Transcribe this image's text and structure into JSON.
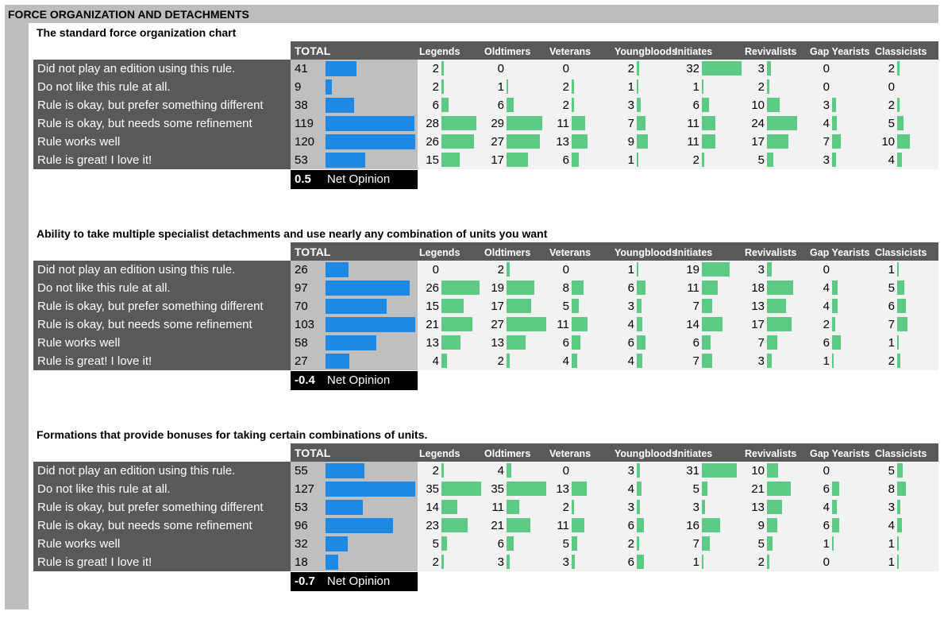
{
  "page_title": "FORCE ORGANIZATION AND DETACHMENTS",
  "total_header": "TOTAL",
  "group_headers": [
    "Legends",
    "Oldtimers",
    "Veterans",
    "Youngbloods",
    "Initiates",
    "Revivalists",
    "Gap Yearists",
    "Classicists"
  ],
  "row_labels": [
    "Did not play an edition using this rule.",
    "Do not like this rule at all.",
    "Rule is okay, but prefer something different",
    "Rule is okay, but needs some refinement",
    "Rule works well",
    "Rule is great! I love it!"
  ],
  "net_opinion_label": "Net Opinion",
  "colors": {
    "total_bar": "#1e88e5",
    "group_bar": "#5cc985",
    "dark_panel": "#595959",
    "total_panel": "#bfbfbf",
    "group_panel": "#f2f2f2"
  },
  "chart_data": [
    {
      "type": "table",
      "title": "The standard force organization chart",
      "net_opinion": "0.5",
      "totals": [
        41,
        9,
        38,
        119,
        120,
        53
      ],
      "series": [
        {
          "name": "Legends",
          "values": [
            2,
            2,
            6,
            28,
            26,
            15
          ]
        },
        {
          "name": "Oldtimers",
          "values": [
            0,
            1,
            6,
            29,
            27,
            17
          ]
        },
        {
          "name": "Veterans",
          "values": [
            0,
            2,
            2,
            11,
            13,
            6
          ]
        },
        {
          "name": "Youngbloods",
          "values": [
            2,
            1,
            3,
            7,
            9,
            1
          ]
        },
        {
          "name": "Initiates",
          "values": [
            32,
            1,
            6,
            11,
            11,
            2
          ]
        },
        {
          "name": "Revivalists",
          "values": [
            3,
            2,
            10,
            24,
            17,
            5
          ]
        },
        {
          "name": "Gap Yearists",
          "values": [
            0,
            0,
            3,
            4,
            7,
            3
          ]
        },
        {
          "name": "Classicists",
          "values": [
            2,
            0,
            2,
            5,
            10,
            4
          ]
        }
      ]
    },
    {
      "type": "table",
      "title": "Ability to take multiple specialist detachments and use nearly any combination of units you want",
      "net_opinion": "-0.4",
      "totals": [
        26,
        97,
        70,
        103,
        58,
        27
      ],
      "series": [
        {
          "name": "Legends",
          "values": [
            0,
            26,
            15,
            21,
            13,
            4
          ]
        },
        {
          "name": "Oldtimers",
          "values": [
            2,
            19,
            17,
            27,
            13,
            2
          ]
        },
        {
          "name": "Veterans",
          "values": [
            0,
            8,
            5,
            11,
            6,
            4
          ]
        },
        {
          "name": "Youngbloods",
          "values": [
            1,
            6,
            3,
            4,
            6,
            4
          ]
        },
        {
          "name": "Initiates",
          "values": [
            19,
            11,
            7,
            14,
            6,
            7
          ]
        },
        {
          "name": "Revivalists",
          "values": [
            3,
            18,
            13,
            17,
            7,
            3
          ]
        },
        {
          "name": "Gap Yearists",
          "values": [
            0,
            4,
            4,
            2,
            6,
            1
          ]
        },
        {
          "name": "Classicists",
          "values": [
            1,
            5,
            6,
            7,
            1,
            2
          ]
        }
      ]
    },
    {
      "type": "table",
      "title": "Formations that provide bonuses for taking certain combinations of units.",
      "net_opinion": "-0.7",
      "totals": [
        55,
        127,
        53,
        96,
        32,
        18
      ],
      "series": [
        {
          "name": "Legends",
          "values": [
            2,
            35,
            14,
            23,
            5,
            2
          ]
        },
        {
          "name": "Oldtimers",
          "values": [
            4,
            35,
            11,
            21,
            6,
            3
          ]
        },
        {
          "name": "Veterans",
          "values": [
            0,
            13,
            2,
            11,
            5,
            3
          ]
        },
        {
          "name": "Youngbloods",
          "values": [
            3,
            4,
            3,
            6,
            2,
            6
          ]
        },
        {
          "name": "Initiates",
          "values": [
            31,
            5,
            3,
            16,
            7,
            1
          ]
        },
        {
          "name": "Revivalists",
          "values": [
            10,
            21,
            13,
            9,
            5,
            2
          ]
        },
        {
          "name": "Gap Yearists",
          "values": [
            0,
            6,
            4,
            6,
            1,
            0
          ]
        },
        {
          "name": "Classicists",
          "values": [
            5,
            8,
            3,
            4,
            1,
            1
          ]
        }
      ]
    }
  ]
}
